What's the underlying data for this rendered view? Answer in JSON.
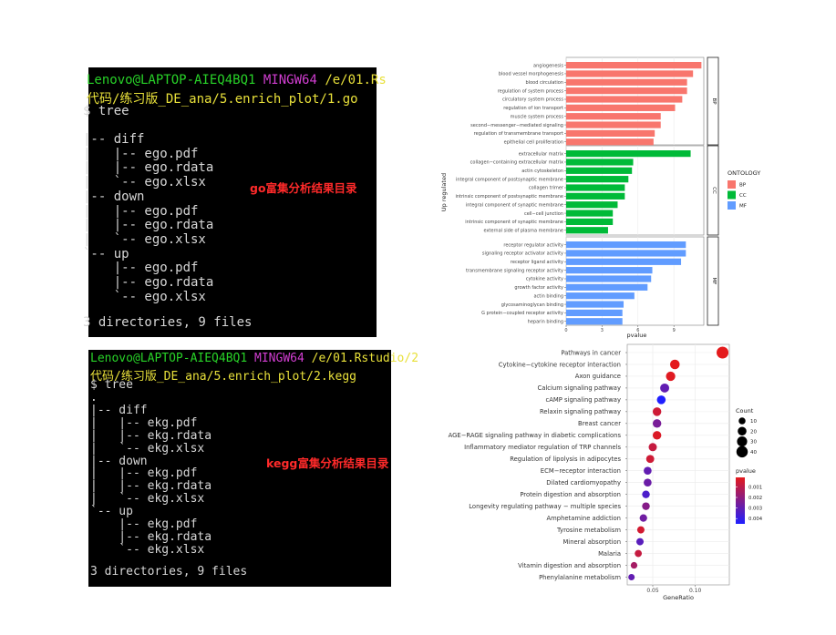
{
  "terminal_go": {
    "prompt": {
      "user": "Lenovo@LAPTOP-AIEQ4BQ1",
      "shell": "MINGW64",
      "path": "/e/01.Rs"
    },
    "path_line": "代码/练习版_DE_ana/5.enrich_plot/1.go",
    "command": "$ tree",
    "lines": [
      "|-- diff",
      "|   |-- ego.pdf",
      "|   |-- ego.rdata",
      "|   `-- ego.xlsx",
      "|-- down",
      "|   |-- ego.pdf",
      "|   |-- ego.rdata",
      "|   `-- ego.xlsx",
      "`-- up",
      "    |-- ego.pdf",
      "    |-- ego.rdata",
      "    `-- ego.xlsx"
    ],
    "summary": "3 directories, 9 files",
    "annotation": "go富集分析结果目录"
  },
  "terminal_kegg": {
    "prompt": {
      "user": "Lenovo@LAPTOP-AIEQ4BQ1",
      "shell": "MINGW64",
      "path": "/e/01.Rstudio/2"
    },
    "path_line": "代码/练习版_DE_ana/5.enrich_plot/2.kegg",
    "command": "$ tree",
    "lines": [
      ".",
      "|-- diff",
      "|   |-- ekg.pdf",
      "|   |-- ekg.rdata",
      "|   `-- ekg.xlsx",
      "|-- down",
      "|   |-- ekg.pdf",
      "|   |-- ekg.rdata",
      "|   `-- ekg.xlsx",
      "`-- up",
      "    |-- ekg.pdf",
      "    |-- ekg.rdata",
      "    `-- ekg.xlsx"
    ],
    "summary": "3 directories, 9 files",
    "annotation": "kegg富集分析结果目录"
  },
  "chart_data": [
    {
      "type": "bar",
      "orientation": "horizontal",
      "title": "",
      "xlabel": "pvalue",
      "ylabel": "Up regulated",
      "xlim": [
        0,
        11.5
      ],
      "xticks": [
        0,
        3,
        6,
        9
      ],
      "legend": {
        "title": "ONTOLOGY",
        "position": "right"
      },
      "colors": {
        "BP": "#f8766d",
        "CC": "#00ba38",
        "MF": "#619cff"
      },
      "groups": [
        {
          "name": "BP",
          "facet_label": "BP",
          "categories": [
            "angiogenesis",
            "blood vessel morphogenesis",
            "blood circulation",
            "regulation of system process",
            "circulatory system process",
            "regulation of ion transport",
            "muscle system process",
            "second−messenger−mediated signaling",
            "regulation of transmembrane transport",
            "epithelial cell proliferation"
          ],
          "values": [
            11.3,
            10.6,
            10.1,
            10.1,
            9.7,
            9.1,
            7.9,
            7.9,
            7.4,
            7.3
          ]
        },
        {
          "name": "CC",
          "facet_label": "CC",
          "categories": [
            "extracellular matrix",
            "collagen−containing extracellular matrix",
            "actin cytoskeleton",
            "integral component of postsynaptic membrane",
            "collagen trimer",
            "intrinsic component of postsynaptic membrane",
            "integral component of synaptic membrane",
            "cell−cell junction",
            "intrinsic component of synaptic membrane",
            "external side of plasma membrane"
          ],
          "values": [
            10.4,
            5.6,
            5.5,
            5.2,
            4.9,
            4.9,
            4.3,
            3.9,
            3.9,
            3.5
          ]
        },
        {
          "name": "MF",
          "facet_label": "MF",
          "categories": [
            "receptor regulator activity",
            "signaling receptor activator activity",
            "receptor ligand activity",
            "transmembrane signaling receptor activity",
            "cytokine activity",
            "growth factor activity",
            "actin binding",
            "glycosaminoglycan binding",
            "G protein−coupled receptor activity",
            "heparin binding"
          ],
          "values": [
            10.0,
            10.0,
            9.6,
            7.2,
            7.1,
            6.8,
            5.7,
            4.8,
            4.7,
            4.7
          ]
        }
      ]
    },
    {
      "type": "scatter",
      "title": "",
      "xlabel": "GeneRatio",
      "ylabel": "",
      "xlim": [
        0.02,
        0.14
      ],
      "xticks": [
        0.05,
        0.1
      ],
      "xtick_labels": [
        "0.05",
        "0.10"
      ],
      "grid": true,
      "size_legend": {
        "title": "Count",
        "values": [
          10,
          20,
          30,
          40
        ]
      },
      "color_legend": {
        "title": "pvalue",
        "ticks": [
          0.001,
          0.002,
          0.003,
          0.004
        ],
        "tick_labels": [
          "0.001",
          "0.002",
          "0.003",
          "0.004"
        ],
        "low_color": "#e41a1c",
        "high_color": "#1f1fff"
      },
      "points": [
        {
          "term": "Pathways in cancer",
          "x": 0.132,
          "count": 45,
          "p": 0.0001
        },
        {
          "term": "Cytokine−cytokine receptor interaction",
          "x": 0.076,
          "count": 26,
          "p": 0.0001
        },
        {
          "term": "Axon guidance",
          "x": 0.071,
          "count": 24,
          "p": 0.0002
        },
        {
          "term": "Calcium signaling pathway",
          "x": 0.064,
          "count": 22,
          "p": 0.003
        },
        {
          "term": "cAMP signaling pathway",
          "x": 0.06,
          "count": 20,
          "p": 0.0045
        },
        {
          "term": "Relaxin signaling pathway",
          "x": 0.055,
          "count": 19,
          "p": 0.0006
        },
        {
          "term": "Breast cancer",
          "x": 0.055,
          "count": 19,
          "p": 0.0025
        },
        {
          "term": "AGE−RAGE signaling pathway in diabetic complications",
          "x": 0.055,
          "count": 19,
          "p": 0.0003
        },
        {
          "term": "Inflammatory mediator regulation of TRP channels",
          "x": 0.05,
          "count": 17,
          "p": 0.0008
        },
        {
          "term": "Regulation of lipolysis in adipocytes",
          "x": 0.047,
          "count": 16,
          "p": 0.0006
        },
        {
          "term": "ECM−receptor interaction",
          "x": 0.044,
          "count": 15,
          "p": 0.003
        },
        {
          "term": "Dilated cardiomyopathy",
          "x": 0.044,
          "count": 15,
          "p": 0.0028
        },
        {
          "term": "Protein digestion and absorption",
          "x": 0.042,
          "count": 14,
          "p": 0.0035
        },
        {
          "term": "Longevity regulating pathway − multiple species",
          "x": 0.042,
          "count": 14,
          "p": 0.0022
        },
        {
          "term": "Amphetamine addiction",
          "x": 0.039,
          "count": 13,
          "p": 0.0027
        },
        {
          "term": "Tyrosine metabolism",
          "x": 0.036,
          "count": 12,
          "p": 0.0005
        },
        {
          "term": "Mineral absorption",
          "x": 0.035,
          "count": 12,
          "p": 0.0032
        },
        {
          "term": "Malaria",
          "x": 0.033,
          "count": 11,
          "p": 0.0008
        },
        {
          "term": "Vitamin digestion and absorption",
          "x": 0.028,
          "count": 9,
          "p": 0.0015
        },
        {
          "term": "Phenylalanine metabolism",
          "x": 0.025,
          "count": 8,
          "p": 0.003
        }
      ]
    }
  ]
}
